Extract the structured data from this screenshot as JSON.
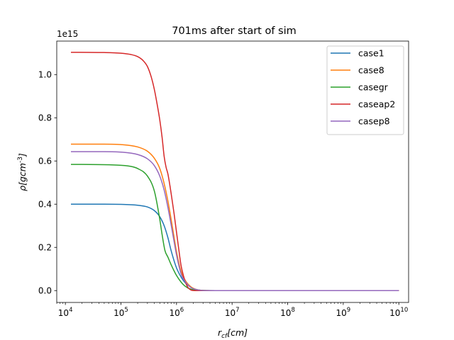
{
  "chart_data": {
    "type": "line",
    "title": "701ms after start of sim",
    "xlabel": "r_cf[cm]",
    "ylabel": "ρ[gcm^-3]",
    "xscale": "log",
    "xlim": [
      7000,
      15000000000
    ],
    "ylim": [
      -55000000000000.0,
      1155000000000000.0
    ],
    "y_offset_text": "1e15",
    "x_ticks": [
      {
        "value": 10000,
        "base": "10",
        "exp": "4"
      },
      {
        "value": 100000,
        "base": "10",
        "exp": "5"
      },
      {
        "value": 1000000,
        "base": "10",
        "exp": "6"
      },
      {
        "value": 10000000,
        "base": "10",
        "exp": "7"
      },
      {
        "value": 100000000,
        "base": "10",
        "exp": "8"
      },
      {
        "value": 1000000000,
        "base": "10",
        "exp": "9"
      },
      {
        "value": 10000000000,
        "base": "10",
        "exp": "10"
      }
    ],
    "y_ticks": [
      {
        "value": 0,
        "label": "0.0"
      },
      {
        "value": 200000000000000.0,
        "label": "0.2"
      },
      {
        "value": 400000000000000.0,
        "label": "0.4"
      },
      {
        "value": 600000000000000.0,
        "label": "0.6"
      },
      {
        "value": 800000000000000.0,
        "label": "0.8"
      },
      {
        "value": 1000000000000000.0,
        "label": "1.0"
      }
    ],
    "grid": false,
    "legend_position": "top-right",
    "series": [
      {
        "name": "case1",
        "color": "#1f77b4",
        "x": [
          12600,
          50000,
          100000,
          200000,
          300000,
          400000,
          500000,
          600000,
          700000,
          800000,
          1000000,
          1300000,
          1600000,
          2000000,
          2500000,
          3200000,
          5000000,
          10000000,
          100000000,
          1000000000,
          10000000000
        ],
        "y": [
          400000000000000.0,
          400000000000000.0,
          399000000000000.0,
          395000000000000.0,
          387000000000000.0,
          370000000000000.0,
          342000000000000.0,
          300000000000000.0,
          245000000000000.0,
          185000000000000.0,
          105000000000000.0,
          50000000000000.0,
          25000000000000.0,
          10000000000000.0,
          3000000000000.0,
          500000000000.0,
          0,
          0,
          0,
          0,
          0
        ]
      },
      {
        "name": "case8",
        "color": "#ff7f0e",
        "x": [
          12600,
          50000,
          100000,
          200000,
          300000,
          400000,
          500000,
          600000,
          700000,
          800000,
          900000,
          1000000,
          1200000,
          1500000,
          1800000,
          2200000,
          2800000,
          3500000,
          5000000,
          10000000,
          100000000,
          1000000000,
          10000000000
        ],
        "y": [
          678000000000000.0,
          678000000000000.0,
          676000000000000.0,
          665000000000000.0,
          645000000000000.0,
          612000000000000.0,
          565000000000000.0,
          495000000000000.0,
          415000000000000.0,
          330000000000000.0,
          250000000000000.0,
          180000000000000.0,
          90000000000000.0,
          40000000000000.0,
          18000000000000.0,
          6000000000000.0,
          1500000000000.0,
          300000000000.0,
          0,
          0,
          0,
          0,
          0
        ]
      },
      {
        "name": "casegr",
        "color": "#2ca02c",
        "x": [
          12600,
          50000,
          100000,
          150000,
          200000,
          300000,
          400000,
          500000,
          550000,
          620000,
          700000,
          800000,
          1000000,
          1300000,
          1600000,
          2000000,
          2500000,
          3200000,
          5000000,
          10000000,
          100000000,
          1000000000,
          10000000000
        ],
        "y": [
          584000000000000.0,
          583000000000000.0,
          580000000000000.0,
          575000000000000.0,
          565000000000000.0,
          530000000000000.0,
          460000000000000.0,
          330000000000000.0,
          260000000000000.0,
          185000000000000.0,
          155000000000000.0,
          120000000000000.0,
          70000000000000.0,
          30000000000000.0,
          12000000000000.0,
          4000000000000.0,
          1000000000000.0,
          200000000000.0,
          0,
          0,
          0,
          0,
          0
        ]
      },
      {
        "name": "caseap2",
        "color": "#d62728",
        "x": [
          12600,
          50000,
          100000,
          150000,
          200000,
          250000,
          300000,
          350000,
          400000,
          450000,
          500000,
          550000,
          600000,
          650000,
          700000,
          800000,
          900000,
          1000000,
          1100000,
          1200000,
          1400000,
          1600000,
          1800000,
          2000000,
          3000000,
          10000000,
          100000000,
          1000000000,
          10000000000
        ],
        "y": [
          1103000000000000.0,
          1102000000000000.0,
          1099000000000000.0,
          1093000000000000.0,
          1083000000000000.0,
          1065000000000000.0,
          1037000000000000.0,
          990000000000000.0,
          930000000000000.0,
          860000000000000.0,
          790000000000000.0,
          710000000000000.0,
          620000000000000.0,
          570000000000000.0,
          540000000000000.0,
          450000000000000.0,
          360000000000000.0,
          270000000000000.0,
          190000000000000.0,
          120000000000000.0,
          50000000000000.0,
          15000000000000.0,
          3000000000000.0,
          500000000000.0,
          0,
          0,
          0,
          0,
          0
        ]
      },
      {
        "name": "casep8",
        "color": "#9467bd",
        "x": [
          12600,
          50000,
          100000,
          200000,
          300000,
          400000,
          500000,
          600000,
          700000,
          800000,
          900000,
          1000000,
          1200000,
          1500000,
          1800000,
          2200000,
          2800000,
          3500000,
          5000000,
          10000000,
          100000000,
          1000000000,
          10000000000
        ],
        "y": [
          643000000000000.0,
          643000000000000.0,
          641000000000000.0,
          630000000000000.0,
          610000000000000.0,
          578000000000000.0,
          530000000000000.0,
          465000000000000.0,
          385000000000000.0,
          305000000000000.0,
          230000000000000.0,
          165000000000000.0,
          80000000000000.0,
          35000000000000.0,
          15000000000000.0,
          5000000000000.0,
          1200000000000.0,
          200000000000.0,
          0,
          0,
          0,
          0,
          0
        ]
      }
    ]
  }
}
